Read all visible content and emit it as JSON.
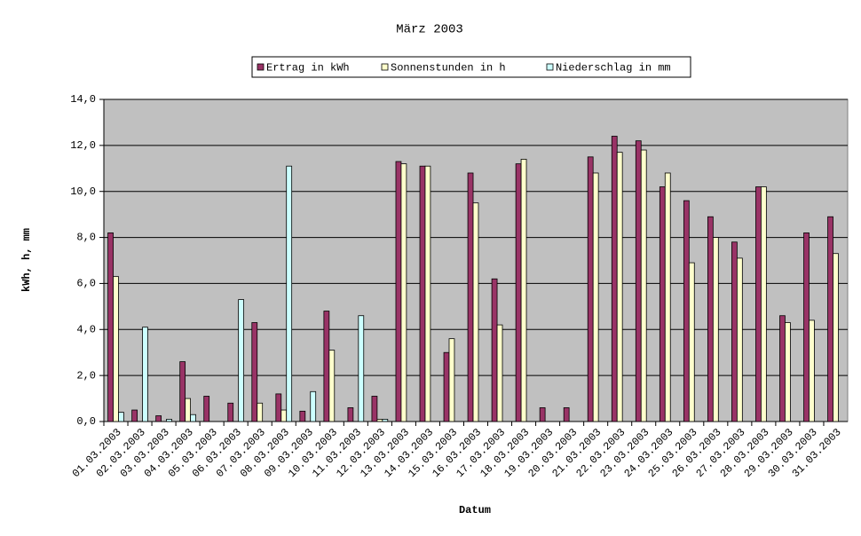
{
  "chart_data": {
    "type": "bar",
    "title": "März 2003",
    "x_label": "Datum",
    "y_label": "kWh, h, mm",
    "categories": [
      "01.03.2003",
      "02.03.2003",
      "03.03.2003",
      "04.03.2003",
      "05.03.2003",
      "06.03.2003",
      "07.03.2003",
      "08.03.2003",
      "09.03.2003",
      "10.03.2003",
      "11.03.2003",
      "12.03.2003",
      "13.03.2003",
      "14.03.2003",
      "15.03.2003",
      "16.03.2003",
      "17.03.2003",
      "18.03.2003",
      "19.03.2003",
      "20.03.2003",
      "21.03.2003",
      "22.03.2003",
      "23.03.2003",
      "24.03.2003",
      "25.03.2003",
      "26.03.2003",
      "27.03.2003",
      "28.03.2003",
      "29.03.2003",
      "30.03.2003",
      "31.03.2003"
    ],
    "series": [
      {
        "name": "Ertrag in kWh",
        "color": "#993366",
        "values": [
          8.2,
          0.5,
          0.25,
          2.6,
          1.1,
          0.8,
          4.3,
          1.2,
          0.45,
          4.8,
          0.6,
          1.1,
          11.3,
          11.1,
          3.0,
          10.8,
          6.2,
          11.2,
          0.6,
          0.6,
          11.5,
          12.4,
          12.2,
          10.2,
          9.6,
          8.9,
          7.8,
          10.2,
          4.6,
          8.2,
          8.9
        ]
      },
      {
        "name": "Sonnenstunden in h",
        "color": "#ffffcc",
        "values": [
          6.3,
          0,
          0,
          1.0,
          0,
          0,
          0.8,
          0.5,
          0,
          3.1,
          0,
          0.1,
          11.2,
          11.1,
          3.6,
          9.5,
          4.2,
          11.4,
          0,
          0,
          10.8,
          11.7,
          11.8,
          10.8,
          6.9,
          8.0,
          7.1,
          10.2,
          4.3,
          4.4,
          7.3
        ]
      },
      {
        "name": "Niederschlag in mm",
        "color": "#ccffff",
        "values": [
          0.4,
          4.1,
          0.1,
          0.3,
          0,
          5.3,
          0,
          11.1,
          1.3,
          0,
          4.6,
          0.1,
          0,
          0,
          0,
          0,
          0,
          0,
          0,
          0,
          0,
          0,
          0,
          0,
          0,
          0,
          0,
          0,
          0,
          0,
          0
        ]
      }
    ],
    "ylim": [
      0,
      14
    ],
    "yticks": [
      {
        "value": 0,
        "label": "0,0"
      },
      {
        "value": 2,
        "label": "2,0"
      },
      {
        "value": 4,
        "label": "4,0"
      },
      {
        "value": 6,
        "label": "6,0"
      },
      {
        "value": 8,
        "label": "8,0"
      },
      {
        "value": 10,
        "label": "10,0"
      },
      {
        "value": 12,
        "label": "12,0"
      },
      {
        "value": 14,
        "label": "14,0"
      }
    ],
    "grid": true,
    "plot_background": "#c0c0c0",
    "legend": "top"
  }
}
